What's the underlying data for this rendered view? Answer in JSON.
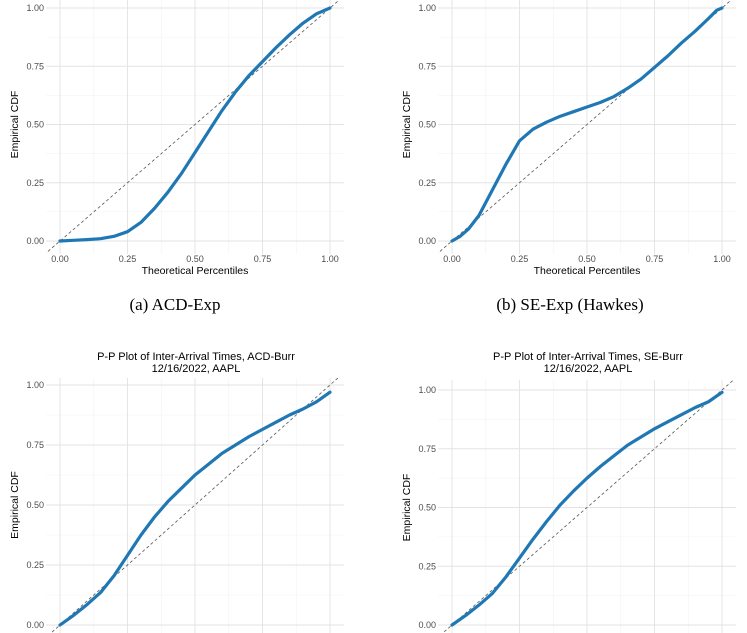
{
  "chart_data": [
    {
      "type": "line",
      "title": "",
      "caption": "(a) ACD-Exp",
      "xlabel": "Theoretical Percentiles",
      "ylabel": "Empirical CDF",
      "xlim": [
        0,
        1
      ],
      "ylim": [
        0,
        1
      ],
      "xticks": [
        "0.00",
        "0.25",
        "0.50",
        "0.75",
        "1.00"
      ],
      "yticks": [
        "0.00",
        "0.25",
        "0.50",
        "0.75",
        "1.00"
      ],
      "reference_line": "y = x",
      "series": [
        {
          "color": "#1f77b4",
          "x": [
            0.0,
            0.05,
            0.1,
            0.15,
            0.2,
            0.25,
            0.3,
            0.35,
            0.4,
            0.45,
            0.5,
            0.55,
            0.6,
            0.65,
            0.7,
            0.75,
            0.8,
            0.85,
            0.9,
            0.95,
            1.0
          ],
          "y": [
            0.0,
            0.003,
            0.006,
            0.01,
            0.02,
            0.04,
            0.08,
            0.14,
            0.21,
            0.29,
            0.38,
            0.47,
            0.56,
            0.64,
            0.71,
            0.77,
            0.83,
            0.885,
            0.935,
            0.975,
            1.0
          ]
        }
      ]
    },
    {
      "type": "line",
      "title": "",
      "caption": "(b) SE-Exp (Hawkes)",
      "xlabel": "Theoretical Percentiles",
      "ylabel": "Empirical CDF",
      "xlim": [
        0,
        1
      ],
      "ylim": [
        0,
        1
      ],
      "xticks": [
        "0.00",
        "0.25",
        "0.50",
        "0.75",
        "1.00"
      ],
      "yticks": [
        "0.00",
        "0.25",
        "0.50",
        "0.75",
        "1.00"
      ],
      "reference_line": "y = x",
      "series": [
        {
          "color": "#1f77b4",
          "x": [
            0.0,
            0.03,
            0.06,
            0.1,
            0.15,
            0.2,
            0.25,
            0.3,
            0.35,
            0.4,
            0.45,
            0.5,
            0.55,
            0.6,
            0.65,
            0.7,
            0.75,
            0.8,
            0.85,
            0.9,
            0.95,
            0.98,
            1.0
          ],
          "y": [
            0.0,
            0.02,
            0.05,
            0.11,
            0.22,
            0.33,
            0.43,
            0.48,
            0.51,
            0.535,
            0.555,
            0.575,
            0.595,
            0.62,
            0.655,
            0.695,
            0.745,
            0.795,
            0.85,
            0.9,
            0.955,
            0.99,
            1.0
          ]
        }
      ]
    },
    {
      "type": "line",
      "title": "P-P Plot of Inter-Arrival Times, ACD-Burr",
      "subtitle": "12/16/2022, AAPL",
      "caption": "",
      "xlabel": "",
      "ylabel": "Empirical CDF",
      "xlim": [
        0,
        1
      ],
      "ylim": [
        0,
        1
      ],
      "xticks": [],
      "yticks": [
        "0.00",
        "0.25",
        "0.50",
        "0.75",
        "1.00"
      ],
      "reference_line": "y = x",
      "series": [
        {
          "color": "#1f77b4",
          "x": [
            0.0,
            0.05,
            0.1,
            0.15,
            0.2,
            0.25,
            0.3,
            0.35,
            0.4,
            0.45,
            0.5,
            0.55,
            0.6,
            0.65,
            0.7,
            0.75,
            0.8,
            0.85,
            0.9,
            0.95,
            1.0
          ],
          "y": [
            0.0,
            0.04,
            0.085,
            0.135,
            0.205,
            0.29,
            0.375,
            0.45,
            0.515,
            0.57,
            0.625,
            0.67,
            0.715,
            0.75,
            0.785,
            0.815,
            0.845,
            0.875,
            0.9,
            0.93,
            0.97
          ]
        }
      ]
    },
    {
      "type": "line",
      "title": "P-P Plot of Inter-Arrival Times, SE-Burr",
      "subtitle": "12/16/2022, AAPL",
      "caption": "",
      "xlabel": "",
      "ylabel": "Empirical CDF",
      "xlim": [
        0,
        1
      ],
      "ylim": [
        0,
        1
      ],
      "xticks": [],
      "yticks": [
        "0.00",
        "0.25",
        "0.50",
        "0.75",
        "1.00"
      ],
      "reference_line": "y = x",
      "series": [
        {
          "color": "#1f77b4",
          "x": [
            0.0,
            0.05,
            0.1,
            0.15,
            0.2,
            0.25,
            0.3,
            0.35,
            0.4,
            0.45,
            0.5,
            0.55,
            0.6,
            0.65,
            0.7,
            0.75,
            0.8,
            0.85,
            0.9,
            0.95,
            1.0
          ],
          "y": [
            0.0,
            0.04,
            0.085,
            0.135,
            0.205,
            0.285,
            0.365,
            0.44,
            0.51,
            0.57,
            0.625,
            0.675,
            0.72,
            0.765,
            0.8,
            0.835,
            0.865,
            0.895,
            0.925,
            0.95,
            0.99
          ]
        }
      ]
    }
  ]
}
